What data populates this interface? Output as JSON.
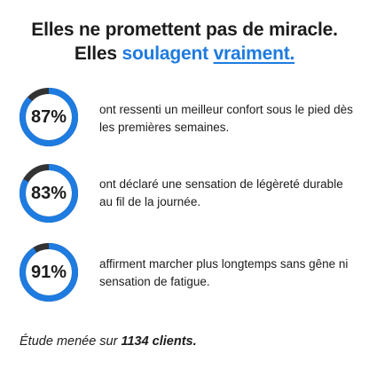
{
  "headline": {
    "line1": "Elles ne promettent pas de miracle.",
    "line2_prefix": "Elles ",
    "line2_accent": "soulagent",
    "line2_space": " ",
    "line2_underlined": "vraiment."
  },
  "colors": {
    "accent": "#1e7be0",
    "ring_track": "#333333",
    "text": "#1c1c1c"
  },
  "stats": [
    {
      "percent_label": "87%",
      "percent_value": 87,
      "description": "ont ressenti un meilleur confort sous le pied dès les premières semaines."
    },
    {
      "percent_label": "83%",
      "percent_value": 83,
      "description": "ont déclaré une sensation de légèreté durable au fil de la journée."
    },
    {
      "percent_label": "91%",
      "percent_value": 91,
      "description": "affirment marcher plus longtemps sans gêne ni sensation de fatigue."
    }
  ],
  "footnote": {
    "prefix": "Étude menée sur ",
    "emphasis": "1134 clients."
  }
}
